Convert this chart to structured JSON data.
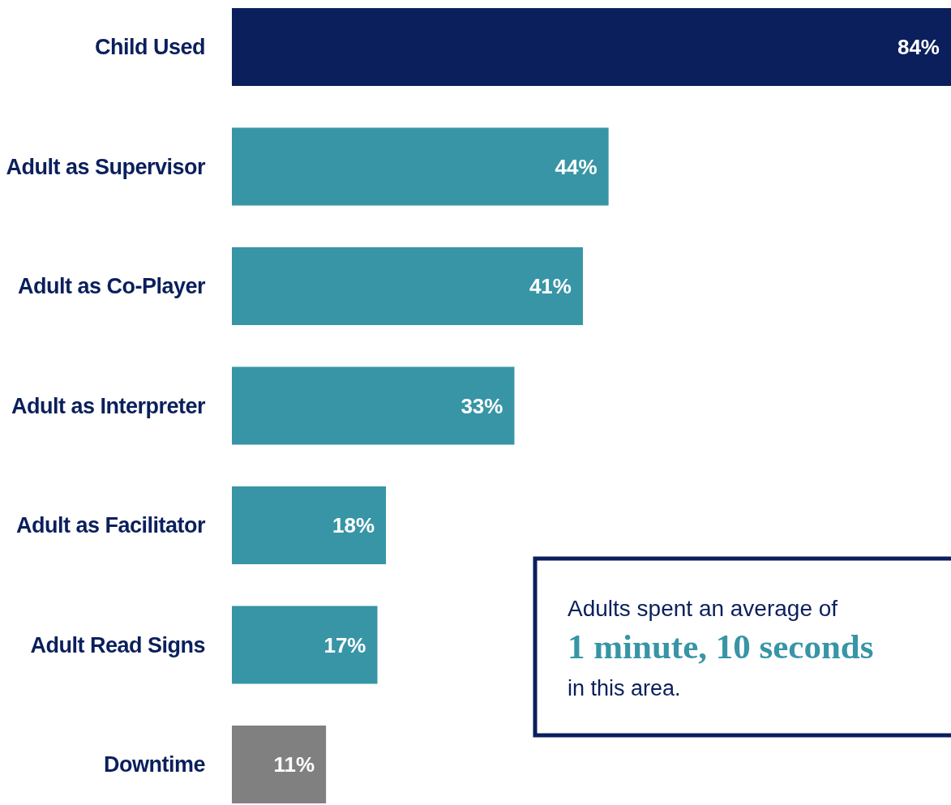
{
  "chart_data": {
    "type": "bar",
    "orientation": "horizontal",
    "categories": [
      "Child Used",
      "Adult as Supervisor",
      "Adult as Co-Player",
      "Adult as Interpreter",
      "Adult as Facilitator",
      "Adult Read Signs",
      "Downtime"
    ],
    "values": [
      84,
      44,
      41,
      33,
      18,
      17,
      11
    ],
    "value_labels": [
      "84%",
      "44%",
      "41%",
      "33%",
      "18%",
      "17%",
      "11%"
    ],
    "colors": [
      "#0a1f5c",
      "#3795a6",
      "#3795a6",
      "#3795a6",
      "#3795a6",
      "#3795a6",
      "#808080"
    ],
    "annotations": [
      "Adults spent an average of",
      "1 minute, 10 seconds",
      "in this area."
    ]
  }
}
